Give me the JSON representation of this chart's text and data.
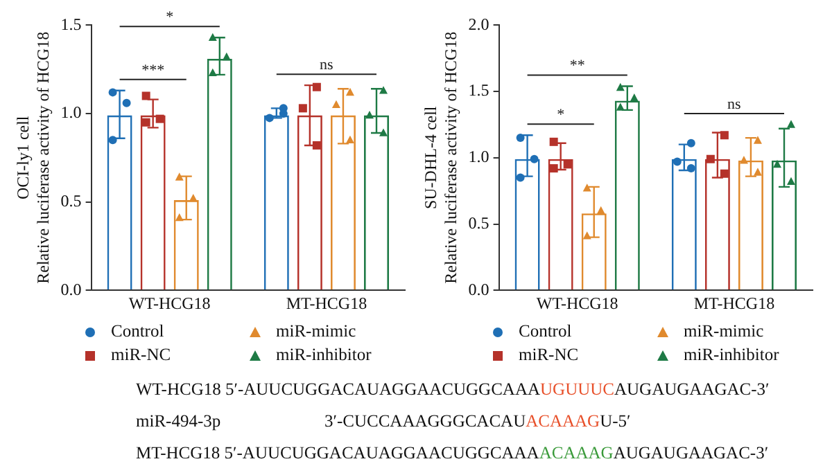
{
  "chart_data": [
    {
      "type": "bar",
      "categories": [
        "WT-HCG18",
        "MT-HCG18"
      ],
      "ylabel": "OCI-ly1 cell\nRelative luciferase activity of HCG18",
      "ylim": [
        0,
        1.5
      ],
      "yticks": [
        {
          "value": 0,
          "label": "0.0"
        },
        {
          "value": 0.5,
          "label": "0.5"
        },
        {
          "value": 1,
          "label": "1.0"
        },
        {
          "value": 1.5,
          "label": "1.5"
        }
      ],
      "grid": false,
      "legend": "bottom",
      "annotations": [
        "*",
        "***",
        "ns"
      ],
      "series": [
        {
          "name": "Control",
          "color": "#1f6fb5",
          "values": [
            0.99,
            0.99
          ],
          "errors": [
            [
              0.86,
              1.13
            ],
            [
              0.975,
              1.03
            ]
          ]
        },
        {
          "name": "miR-NC",
          "color": "#b5322a",
          "values": [
            0.99,
            0.99
          ],
          "errors": [
            [
              0.92,
              1.08
            ],
            [
              0.82,
              1.16
            ]
          ]
        },
        {
          "name": "miR-mimic",
          "color": "#e08a2e",
          "values": [
            0.51,
            0.99
          ],
          "errors": [
            [
              0.4,
              0.645
            ],
            [
              0.83,
              1.14
            ]
          ]
        },
        {
          "name": "miR-inhibitor",
          "color": "#1e7a45",
          "values": [
            1.31,
            0.99
          ],
          "errors": [
            [
              1.22,
              1.43
            ],
            [
              0.89,
              1.14
            ]
          ]
        },
        {
          "type": "scatter",
          "color": "#1f6fb5",
          "marker": "circle",
          "x": [
            "WT-HCG18",
            "WT-HCG18",
            "WT-HCG18",
            "MT-HCG18",
            "MT-HCG18",
            "MT-HCG18"
          ],
          "values": [
            1.12,
            1.06,
            0.85,
            1.03,
            0.975,
            1.0
          ]
        },
        {
          "type": "scatter",
          "color": "#b5322a",
          "marker": "square",
          "x": [
            "WT-HCG18",
            "WT-HCG18",
            "WT-HCG18",
            "MT-HCG18",
            "MT-HCG18",
            "MT-HCG18"
          ],
          "values": [
            1.1,
            0.97,
            0.95,
            1.15,
            1.03,
            0.82
          ]
        },
        {
          "type": "scatter",
          "color": "#e08a2e",
          "marker": "triangle",
          "x": [
            "WT-HCG18",
            "WT-HCG18",
            "WT-HCG18",
            "MT-HCG18",
            "MT-HCG18",
            "MT-HCG18"
          ],
          "values": [
            0.64,
            0.52,
            0.41,
            1.12,
            1.05,
            0.85
          ]
        },
        {
          "type": "scatter",
          "color": "#1e7a45",
          "marker": "triangle",
          "x": [
            "WT-HCG18",
            "WT-HCG18",
            "WT-HCG18",
            "MT-HCG18",
            "MT-HCG18",
            "MT-HCG18"
          ],
          "values": [
            1.43,
            1.32,
            1.23,
            1.13,
            0.99,
            0.89
          ]
        }
      ]
    },
    {
      "type": "bar",
      "categories": [
        "WT-HCG18",
        "MT-HCG18"
      ],
      "ylabel": "SU-DHL-4 cell\nRelative luciferase activity of HCG18",
      "ylim": [
        0,
        2
      ],
      "yticks": [
        {
          "value": 0,
          "label": "0.0"
        },
        {
          "value": 0.5,
          "label": "0.5"
        },
        {
          "value": 1,
          "label": "1.0"
        },
        {
          "value": 1.5,
          "label": "1.5"
        },
        {
          "value": 2,
          "label": "2.0"
        }
      ],
      "grid": false,
      "legend": "bottom",
      "annotations": [
        "**",
        "*",
        "ns"
      ],
      "series": [
        {
          "name": "Control",
          "color": "#1f6fb5",
          "values": [
            0.99,
            0.99
          ],
          "errors": [
            [
              0.86,
              1.17
            ],
            [
              0.905,
              1.1
            ]
          ]
        },
        {
          "name": "miR-NC",
          "color": "#b5322a",
          "values": [
            0.99,
            0.99
          ],
          "errors": [
            [
              0.91,
              1.11
            ],
            [
              0.85,
              1.19
            ]
          ]
        },
        {
          "name": "miR-mimic",
          "color": "#e08a2e",
          "values": [
            0.58,
            0.98
          ],
          "errors": [
            [
              0.4,
              0.78
            ],
            [
              0.86,
              1.15
            ]
          ]
        },
        {
          "name": "miR-inhibitor",
          "color": "#1e7a45",
          "values": [
            1.43,
            0.98
          ],
          "errors": [
            [
              1.36,
              1.54
            ],
            [
              0.78,
              1.22
            ]
          ]
        },
        {
          "type": "scatter",
          "color": "#1f6fb5",
          "marker": "circle",
          "x": [
            "WT-HCG18",
            "WT-HCG18",
            "WT-HCG18",
            "MT-HCG18",
            "MT-HCG18",
            "MT-HCG18"
          ],
          "values": [
            1.15,
            0.99,
            0.85,
            1.11,
            0.97,
            0.92
          ]
        },
        {
          "type": "scatter",
          "color": "#b5322a",
          "marker": "square",
          "x": [
            "WT-HCG18",
            "WT-HCG18",
            "WT-HCG18",
            "MT-HCG18",
            "MT-HCG18",
            "MT-HCG18"
          ],
          "values": [
            1.12,
            0.95,
            0.92,
            1.17,
            0.99,
            0.88
          ]
        },
        {
          "type": "scatter",
          "color": "#e08a2e",
          "marker": "triangle",
          "x": [
            "WT-HCG18",
            "WT-HCG18",
            "WT-HCG18",
            "MT-HCG18",
            "MT-HCG18",
            "MT-HCG18"
          ],
          "values": [
            0.77,
            0.6,
            0.41,
            1.13,
            0.98,
            0.89
          ]
        },
        {
          "type": "scatter",
          "color": "#1e7a45",
          "marker": "triangle",
          "x": [
            "WT-HCG18",
            "WT-HCG18",
            "WT-HCG18",
            "MT-HCG18",
            "MT-HCG18",
            "MT-HCG18"
          ],
          "values": [
            1.53,
            1.45,
            1.38,
            1.25,
            0.95,
            0.82
          ]
        }
      ]
    },
    {
      "type": "other",
      "annotations": [
        "WT-HCG18 5′-AUUCUGGACAUAGGAACUGGCAAA",
        "UGUUUC",
        "AUGAUGAAGAC-3′",
        "miR-494-3p",
        "3′-CUCCAAAGGGCACAU",
        "ACAAAG",
        "U-5′",
        "MT-HCG18 5′-AUUCUGGACAUAGGAACUGGCAAA",
        "ACAAAG",
        "AUGAUGAAGAC-3′"
      ],
      "colors": [
        "#111111",
        "#e8502a",
        "#111111",
        "#111111",
        "#111111",
        "#e8502a",
        "#111111",
        "#111111",
        "#3a9a3a",
        "#111111"
      ]
    }
  ]
}
